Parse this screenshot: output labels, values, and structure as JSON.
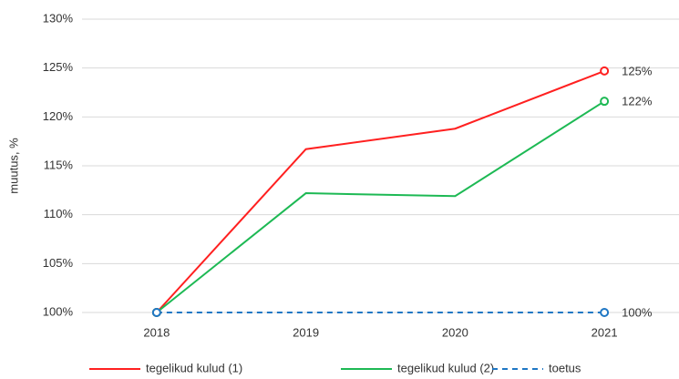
{
  "chart_data": {
    "type": "line",
    "ylabel": "muutus, %",
    "categories": [
      "2018",
      "2019",
      "2020",
      "2021"
    ],
    "series": [
      {
        "name": "tegelikud kulud (1)",
        "color": "#ff2020",
        "dash": false,
        "values": [
          100,
          116.7,
          118.8,
          124.7
        ],
        "value_labels": [
          null,
          null,
          null,
          "125%"
        ]
      },
      {
        "name": "tegelikud kulud (2)",
        "color": "#1db954",
        "dash": false,
        "values": [
          100,
          112.2,
          111.9,
          121.6
        ],
        "value_labels": [
          null,
          null,
          null,
          "122%"
        ]
      },
      {
        "name": "toetus",
        "color": "#1f77c4",
        "dash": true,
        "values": [
          100,
          100,
          100,
          100
        ],
        "value_labels": [
          null,
          null,
          null,
          "100%"
        ]
      }
    ],
    "ylim": [
      100,
      130
    ],
    "yticks": [
      {
        "value": 100,
        "label": "100%"
      },
      {
        "value": 105,
        "label": "105%"
      },
      {
        "value": 110,
        "label": "110%"
      },
      {
        "value": 115,
        "label": "115%"
      },
      {
        "value": 120,
        "label": "120%"
      },
      {
        "value": 125,
        "label": "125%"
      },
      {
        "value": 130,
        "label": "130%"
      }
    ],
    "grid": true,
    "legend": "bottom"
  }
}
